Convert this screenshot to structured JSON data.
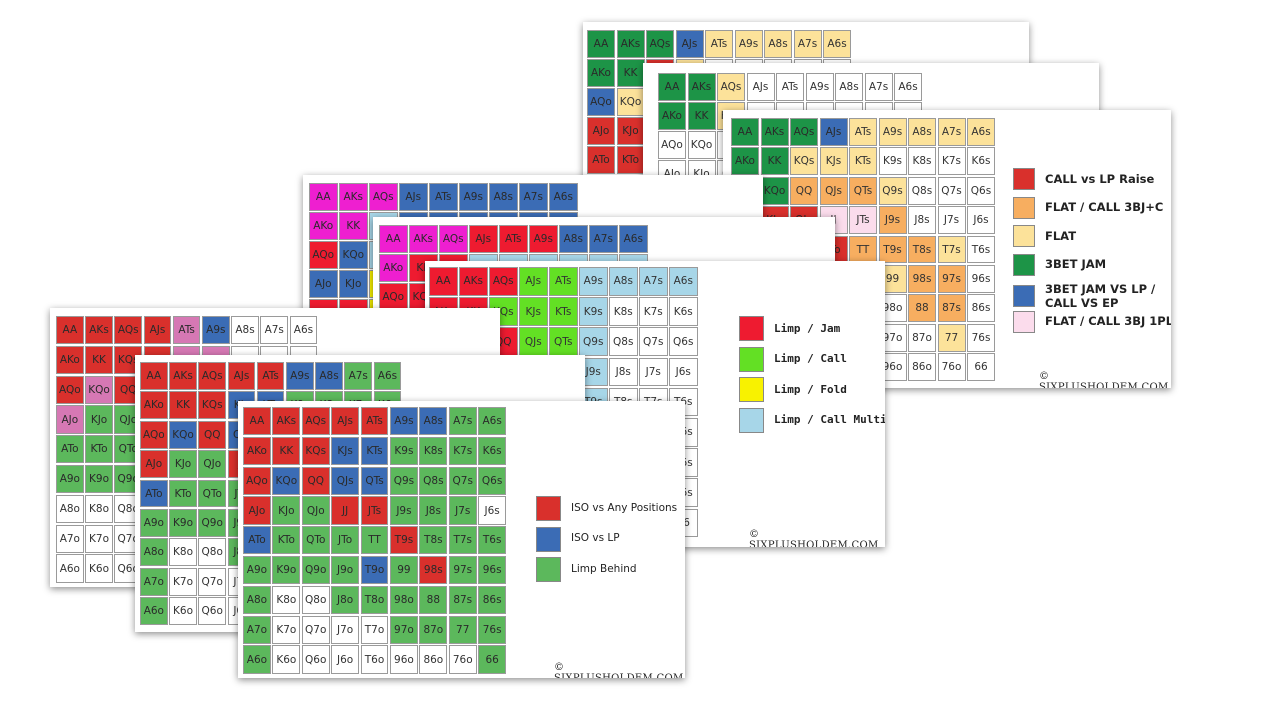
{
  "ranks": [
    "A",
    "K",
    "Q",
    "J",
    "T",
    "9",
    "8",
    "7",
    "6"
  ],
  "colors": {
    "red": "#d9302c",
    "blue": "#3b6cb5",
    "green": "#5cb85c",
    "white": "#ffffff",
    "pink": "#d678b4",
    "dgreen": "#1d9447",
    "orange": "#f7ae60",
    "lorange": "#fce29a",
    "lpink": "#fbdcec",
    "magenta": "#ee1fd0",
    "lred": "#ee1b30",
    "lime": "#63e024",
    "yellow": "#f8f200",
    "lblue": "#a7d6e8",
    "grey": "#e8e8e8"
  },
  "copyright": "© SIXPLUSHOLDEM.COM",
  "charts": [
    {
      "id": "threebet",
      "legend": [
        {
          "color": "red",
          "label": "CALL vs LP Raise"
        },
        {
          "color": "orange",
          "label": "FLAT / CALL 3BJ+C"
        },
        {
          "color": "lorange",
          "label": "FLAT"
        },
        {
          "color": "dgreen",
          "label": "3BET JAM"
        },
        {
          "color": "blue",
          "label": "3BET JAM VS LP /\nCALL VS EP"
        },
        {
          "color": "lpink",
          "label": "FLAT / CALL 3BJ 1PLR"
        }
      ],
      "rows": [
        "dgreen dgreen dgreen blue lorange lorange lorange lorange lorange",
        "dgreen dgreen lorange lorange lorange white white white white",
        "red dgreen orange orange orange lorange white white white",
        "red red red lpink lpink orange white white white",
        "red red red red orange orange orange lorange white",
        "red red red red red lorange orange orange white",
        "white white white white white white orange orange white",
        "white white white white white white white lorange white",
        "white white white white white white white white white"
      ]
    },
    {
      "id": "limp",
      "legend": [
        {
          "color": "lred",
          "label": "Limp / Jam"
        },
        {
          "color": "lime",
          "label": "Limp / Call"
        },
        {
          "color": "yellow",
          "label": "Limp / Fold"
        },
        {
          "color": "lblue",
          "label": "Limp / Call Multiway"
        }
      ],
      "rows": [
        "lred lred lred lime lime lblue lblue lblue lblue",
        "lred lred lime lime lime lblue white white white",
        "lred lred lred lime lime lblue white white white",
        "lred lime lime lime lime lblue white white white",
        "lred lblue lblue lblue lblue lblue white white white",
        "lblue lblue lblue lblue lblue lblue lblue white white",
        "lblue white white white white white white white white",
        "lblue white white white white white white white white",
        "lblue white white white white white white white white"
      ]
    },
    {
      "id": "iso",
      "legend": [
        {
          "color": "red",
          "label": "ISO vs Any Positions"
        },
        {
          "color": "blue",
          "label": "ISO vs LP"
        },
        {
          "color": "green",
          "label": "Limp Behind"
        }
      ],
      "rows": [
        "red red red red red blue blue green green",
        "red red red blue blue green green green green",
        "red blue red blue blue green green green green",
        "red green green red red green green green white",
        "blue green green green green red green green green",
        "green green green green blue green red green green",
        "green white white green green green green green green",
        "green white white white white green green green green",
        "green white white white white white white white green"
      ]
    },
    {
      "id": "mixedpink",
      "rows": [
        "red red red red pink blue white white white",
        "red red red red pink pink white white white",
        "red pink red green green green green green green",
        "pink green green green green green green green green",
        "green green green green green green green green green",
        "green green green green green green green green green",
        "white white white white white white white white white",
        "white white white white white white white white white",
        "white white white white white white white white white"
      ]
    },
    {
      "id": "magentaA",
      "rows": [
        "magenta magenta magenta blue blue blue blue blue blue",
        "magenta magenta lblue blue blue blue blue blue blue",
        "lred blue lblue lblue yellow yellow white white white",
        "blue blue yellow yellow yellow white white white white",
        "lred lred yellow yellow yellow white white white white",
        "lred lred yellow yellow white white white white white",
        "lred lred white white white white white white white",
        "white white white white white white white white white",
        "white white white white white white white white white"
      ]
    },
    {
      "id": "magentaB",
      "rows": [
        "magenta magenta magenta lred lred lred blue blue blue",
        "magenta lred lred lblue lblue lblue lblue lblue lblue",
        "lred lred lred yellow yellow yellow yellow white white",
        "lred lblue yellow yellow yellow white white white white",
        "lred lblue yellow yellow white white white white white",
        "lblue lblue white white white white white white white",
        "white white white white white white white white white",
        "white white white white white white white white white",
        "white white white white white white white white white"
      ]
    },
    {
      "id": "greenA",
      "rows": [
        "dgreen dgreen dgreen blue lorange lorange lorange lorange lorange",
        "dgreen dgreen red lorange white white white white white",
        "blue lorange lorange lorange white white white white white",
        "red red lorange white white white white white white",
        "red red lorange white white white white white white",
        "white white white white white white white white white",
        "white white white white white white white white white",
        "white white white white white white white white white",
        "white white white white white white white white white"
      ]
    },
    {
      "id": "greenB",
      "rows": [
        "dgreen dgreen lorange white white white white white white",
        "dgreen dgreen lorange white white white white white white",
        "white white white white white white white white white",
        "white white white white white white white white white",
        "white white white white white white white white white",
        "white white white white white white white white white",
        "white white white white white white white white white",
        "white white white white white white white white white",
        "white white white white white white white white white"
      ]
    }
  ]
}
